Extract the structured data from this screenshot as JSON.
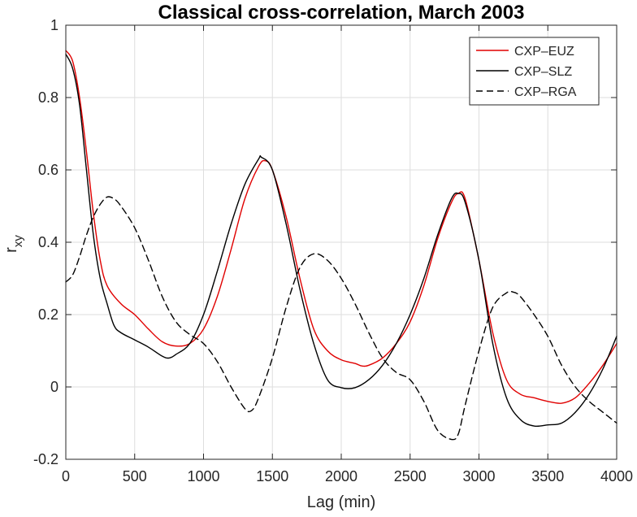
{
  "chart_data": {
    "type": "line",
    "title": "Classical cross-correlation, March 2003",
    "xlabel": "Lag (min)",
    "ylabel_main": "r",
    "ylabel_sub": "xy",
    "xlim": [
      0,
      4000
    ],
    "ylim": [
      -0.2,
      1
    ],
    "xticks": [
      0,
      500,
      1000,
      1500,
      2000,
      2500,
      3000,
      3500,
      4000
    ],
    "xtick_labels": [
      "0",
      "500",
      "1000",
      "1500",
      "2000",
      "2500",
      "3000",
      "3500",
      "4000"
    ],
    "yticks": [
      -0.2,
      0,
      0.2,
      0.4,
      0.6,
      0.8,
      1
    ],
    "ytick_labels": [
      "-0.2",
      "0",
      "0.2",
      "0.4",
      "0.6",
      "0.8",
      "1"
    ],
    "grid": true,
    "legend_position": "top-right",
    "series": [
      {
        "name": "CXP–EUZ",
        "color": "#e00000",
        "dash": "solid",
        "points": [
          [
            0,
            0.93
          ],
          [
            50,
            0.9
          ],
          [
            100,
            0.8
          ],
          [
            150,
            0.65
          ],
          [
            200,
            0.48
          ],
          [
            250,
            0.35
          ],
          [
            300,
            0.28
          ],
          [
            400,
            0.23
          ],
          [
            500,
            0.2
          ],
          [
            600,
            0.16
          ],
          [
            700,
            0.125
          ],
          [
            800,
            0.113
          ],
          [
            900,
            0.12
          ],
          [
            1000,
            0.16
          ],
          [
            1100,
            0.25
          ],
          [
            1200,
            0.38
          ],
          [
            1300,
            0.52
          ],
          [
            1400,
            0.61
          ],
          [
            1450,
            0.625
          ],
          [
            1500,
            0.6
          ],
          [
            1600,
            0.47
          ],
          [
            1700,
            0.3
          ],
          [
            1800,
            0.16
          ],
          [
            1900,
            0.1
          ],
          [
            2000,
            0.075
          ],
          [
            2100,
            0.065
          ],
          [
            2150,
            0.058
          ],
          [
            2200,
            0.06
          ],
          [
            2300,
            0.08
          ],
          [
            2400,
            0.12
          ],
          [
            2500,
            0.18
          ],
          [
            2600,
            0.28
          ],
          [
            2700,
            0.41
          ],
          [
            2800,
            0.51
          ],
          [
            2850,
            0.535
          ],
          [
            2900,
            0.52
          ],
          [
            3000,
            0.35
          ],
          [
            3100,
            0.15
          ],
          [
            3200,
            0.02
          ],
          [
            3300,
            -0.02
          ],
          [
            3400,
            -0.03
          ],
          [
            3500,
            -0.04
          ],
          [
            3600,
            -0.045
          ],
          [
            3700,
            -0.03
          ],
          [
            3800,
            0.01
          ],
          [
            3900,
            0.06
          ],
          [
            4000,
            0.12
          ]
        ]
      },
      {
        "name": "CXP–SLZ",
        "color": "#000000",
        "dash": "solid",
        "points": [
          [
            0,
            0.92
          ],
          [
            50,
            0.88
          ],
          [
            100,
            0.78
          ],
          [
            150,
            0.6
          ],
          [
            200,
            0.42
          ],
          [
            250,
            0.3
          ],
          [
            300,
            0.23
          ],
          [
            350,
            0.17
          ],
          [
            400,
            0.15
          ],
          [
            500,
            0.13
          ],
          [
            600,
            0.11
          ],
          [
            700,
            0.085
          ],
          [
            750,
            0.08
          ],
          [
            800,
            0.09
          ],
          [
            900,
            0.12
          ],
          [
            1000,
            0.2
          ],
          [
            1100,
            0.32
          ],
          [
            1200,
            0.45
          ],
          [
            1300,
            0.56
          ],
          [
            1400,
            0.63
          ],
          [
            1420,
            0.635
          ],
          [
            1500,
            0.6
          ],
          [
            1600,
            0.45
          ],
          [
            1700,
            0.27
          ],
          [
            1800,
            0.12
          ],
          [
            1900,
            0.02
          ],
          [
            2000,
            -0.002
          ],
          [
            2100,
            -0.002
          ],
          [
            2200,
            0.02
          ],
          [
            2300,
            0.06
          ],
          [
            2400,
            0.12
          ],
          [
            2500,
            0.2
          ],
          [
            2600,
            0.3
          ],
          [
            2700,
            0.42
          ],
          [
            2800,
            0.52
          ],
          [
            2850,
            0.535
          ],
          [
            2900,
            0.51
          ],
          [
            3000,
            0.35
          ],
          [
            3100,
            0.12
          ],
          [
            3200,
            -0.03
          ],
          [
            3300,
            -0.09
          ],
          [
            3400,
            -0.108
          ],
          [
            3500,
            -0.105
          ],
          [
            3600,
            -0.1
          ],
          [
            3700,
            -0.07
          ],
          [
            3800,
            -0.02
          ],
          [
            3900,
            0.05
          ],
          [
            4000,
            0.14
          ]
        ]
      },
      {
        "name": "CXP–RGA",
        "color": "#000000",
        "dash": "dashed",
        "points": [
          [
            0,
            0.29
          ],
          [
            50,
            0.31
          ],
          [
            100,
            0.36
          ],
          [
            150,
            0.42
          ],
          [
            200,
            0.47
          ],
          [
            250,
            0.505
          ],
          [
            300,
            0.525
          ],
          [
            350,
            0.52
          ],
          [
            400,
            0.5
          ],
          [
            500,
            0.44
          ],
          [
            600,
            0.35
          ],
          [
            700,
            0.25
          ],
          [
            800,
            0.18
          ],
          [
            900,
            0.145
          ],
          [
            1000,
            0.12
          ],
          [
            1100,
            0.07
          ],
          [
            1200,
            0.0
          ],
          [
            1300,
            -0.06
          ],
          [
            1350,
            -0.065
          ],
          [
            1400,
            -0.03
          ],
          [
            1500,
            0.08
          ],
          [
            1600,
            0.22
          ],
          [
            1700,
            0.33
          ],
          [
            1800,
            0.368
          ],
          [
            1900,
            0.35
          ],
          [
            2000,
            0.3
          ],
          [
            2100,
            0.23
          ],
          [
            2200,
            0.15
          ],
          [
            2300,
            0.08
          ],
          [
            2400,
            0.04
          ],
          [
            2500,
            0.02
          ],
          [
            2600,
            -0.04
          ],
          [
            2700,
            -0.12
          ],
          [
            2800,
            -0.145
          ],
          [
            2850,
            -0.13
          ],
          [
            2900,
            -0.05
          ],
          [
            3000,
            0.1
          ],
          [
            3100,
            0.22
          ],
          [
            3200,
            0.26
          ],
          [
            3250,
            0.262
          ],
          [
            3300,
            0.25
          ],
          [
            3400,
            0.2
          ],
          [
            3500,
            0.14
          ],
          [
            3600,
            0.06
          ],
          [
            3700,
            0.0
          ],
          [
            3800,
            -0.04
          ],
          [
            3900,
            -0.07
          ],
          [
            4000,
            -0.1
          ]
        ]
      }
    ]
  }
}
